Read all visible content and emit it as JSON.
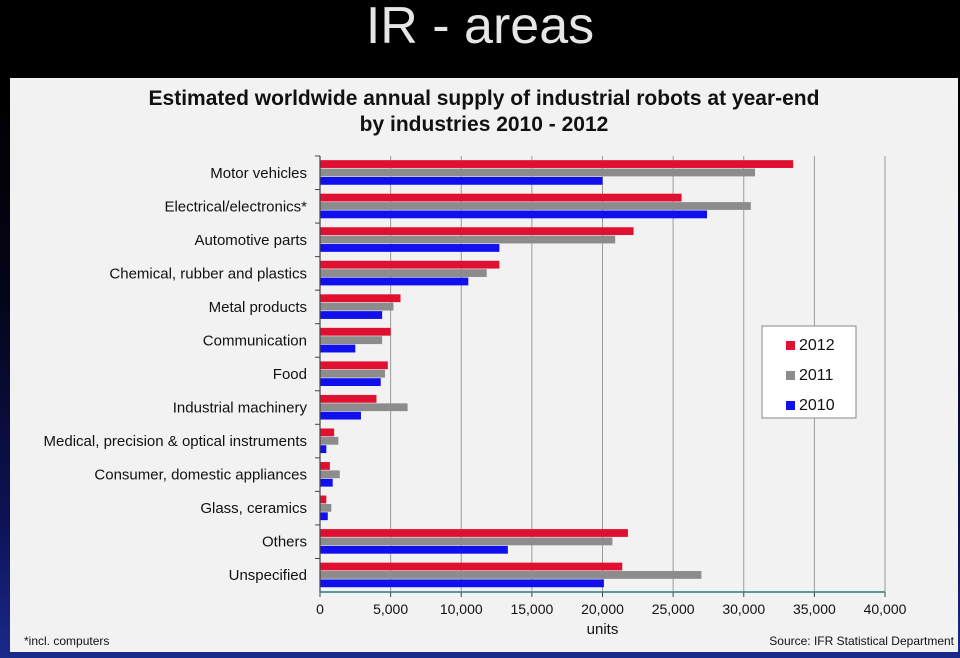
{
  "slide": {
    "title": "IR - areas"
  },
  "chart_data": {
    "type": "bar",
    "orientation": "horizontal",
    "title": "Estimated worldwide annual supply of industrial robots at year-end",
    "subtitle": "by industries 2010 - 2012",
    "xlabel": "units",
    "ylabel": "",
    "xlim": [
      0,
      40000
    ],
    "x_ticks": [
      "0",
      "5,000",
      "10,000",
      "15,000",
      "20,000",
      "25,000",
      "30,000",
      "35,000",
      "40,000"
    ],
    "grid": true,
    "legend_position": "right",
    "categories": [
      "Motor vehicles",
      "Electrical/electronics*",
      "Automotive parts",
      "Chemical, rubber and plastics",
      "Metal products",
      "Communication",
      "Food",
      "Industrial machinery",
      "Medical, precision & optical instruments",
      "Consumer, domestic appliances",
      "Glass, ceramics",
      "Others",
      "Unspecified"
    ],
    "series": [
      {
        "name": "2012",
        "color": "#e01030",
        "values": [
          33500,
          25600,
          22200,
          12700,
          5700,
          5000,
          4800,
          4000,
          1000,
          700,
          450,
          21800,
          21400
        ]
      },
      {
        "name": "2011",
        "color": "#8c8c8c",
        "values": [
          30800,
          30500,
          20900,
          11800,
          5200,
          4400,
          4600,
          6200,
          1300,
          1400,
          800,
          20700,
          27000
        ]
      },
      {
        "name": "2010",
        "color": "#1010ee",
        "values": [
          20000,
          27400,
          12700,
          10500,
          4400,
          2500,
          4300,
          2900,
          450,
          900,
          550,
          13300,
          20100
        ]
      }
    ],
    "footnote": "*incl. computers",
    "source": "Source: IFR Statistical Department"
  }
}
